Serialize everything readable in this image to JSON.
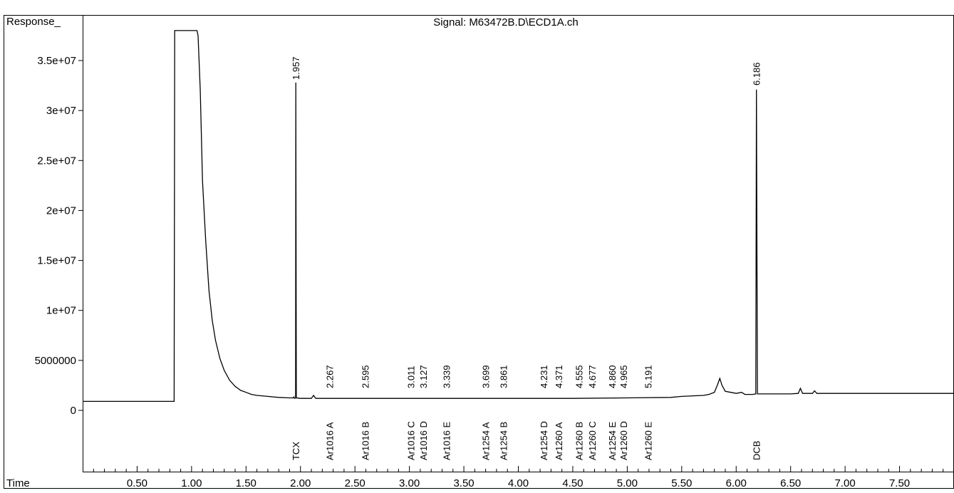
{
  "chart_data": {
    "type": "line",
    "title": "Signal: M63472B.D\\ECD1A.ch",
    "ylabel": "Response_",
    "xlabel": "Time",
    "xlim": [
      0.0,
      8.0
    ],
    "ylim": [
      -5000000,
      37000000
    ],
    "x_ticks": [
      {
        "value": 0.5,
        "label": "0.50"
      },
      {
        "value": 1.0,
        "label": "1.00"
      },
      {
        "value": 1.5,
        "label": "1.50"
      },
      {
        "value": 2.0,
        "label": "2.00"
      },
      {
        "value": 2.5,
        "label": "2.50"
      },
      {
        "value": 3.0,
        "label": "3.00"
      },
      {
        "value": 3.5,
        "label": "3.50"
      },
      {
        "value": 4.0,
        "label": "4.00"
      },
      {
        "value": 4.5,
        "label": "4.50"
      },
      {
        "value": 5.0,
        "label": "5.00"
      },
      {
        "value": 5.5,
        "label": "5.50"
      },
      {
        "value": 6.0,
        "label": "6.00"
      },
      {
        "value": 6.5,
        "label": "6.50"
      },
      {
        "value": 7.0,
        "label": "7.00"
      },
      {
        "value": 7.5,
        "label": "7.50"
      }
    ],
    "y_ticks": [
      {
        "value": 0,
        "label": "0"
      },
      {
        "value": 5000000,
        "label": "5000000"
      },
      {
        "value": 10000000,
        "label": "1e+07"
      },
      {
        "value": 15000000,
        "label": "1.5e+07"
      },
      {
        "value": 20000000,
        "label": "2e+07"
      },
      {
        "value": 25000000,
        "label": "2.5e+07"
      },
      {
        "value": 30000000,
        "label": "3e+07"
      },
      {
        "value": 35000000,
        "label": "3.5e+07"
      }
    ],
    "series": [
      {
        "color": "#000000",
        "points": [
          [
            0.0,
            900000
          ],
          [
            0.84,
            900000
          ],
          [
            0.84,
            900000
          ],
          [
            0.845,
            38000000
          ],
          [
            1.05,
            38000000
          ],
          [
            1.06,
            37500000
          ],
          [
            1.08,
            32000000
          ],
          [
            1.1,
            23000000
          ],
          [
            1.13,
            17000000
          ],
          [
            1.16,
            12000000
          ],
          [
            1.19,
            9000000
          ],
          [
            1.22,
            7000000
          ],
          [
            1.26,
            5200000
          ],
          [
            1.3,
            4000000
          ],
          [
            1.35,
            3000000
          ],
          [
            1.4,
            2400000
          ],
          [
            1.45,
            2000000
          ],
          [
            1.5,
            1800000
          ],
          [
            1.55,
            1600000
          ],
          [
            1.6,
            1500000
          ],
          [
            1.7,
            1400000
          ],
          [
            1.8,
            1300000
          ],
          [
            1.9,
            1250000
          ],
          [
            1.93,
            1250000
          ],
          [
            1.94,
            1350000
          ],
          [
            1.945,
            1200000
          ],
          [
            1.955,
            1250000
          ],
          [
            1.957,
            32800000
          ],
          [
            1.962,
            1250000
          ],
          [
            2.0,
            1200000
          ],
          [
            2.1,
            1200000
          ],
          [
            2.12,
            1500000
          ],
          [
            2.14,
            1200000
          ],
          [
            2.3,
            1200000
          ],
          [
            2.6,
            1200000
          ],
          [
            3.0,
            1200000
          ],
          [
            3.5,
            1200000
          ],
          [
            4.0,
            1200000
          ],
          [
            4.5,
            1200000
          ],
          [
            5.0,
            1250000
          ],
          [
            5.4,
            1300000
          ],
          [
            5.5,
            1400000
          ],
          [
            5.7,
            1500000
          ],
          [
            5.75,
            1600000
          ],
          [
            5.8,
            1800000
          ],
          [
            5.83,
            2600000
          ],
          [
            5.85,
            3200000
          ],
          [
            5.87,
            2500000
          ],
          [
            5.9,
            1900000
          ],
          [
            5.95,
            1800000
          ],
          [
            6.0,
            1700000
          ],
          [
            6.05,
            1800000
          ],
          [
            6.08,
            1600000
          ],
          [
            6.15,
            1600000
          ],
          [
            6.18,
            1650000
          ],
          [
            6.186,
            32100000
          ],
          [
            6.195,
            1650000
          ],
          [
            6.3,
            1650000
          ],
          [
            6.5,
            1650000
          ],
          [
            6.57,
            1700000
          ],
          [
            6.59,
            2200000
          ],
          [
            6.61,
            1700000
          ],
          [
            6.7,
            1700000
          ],
          [
            6.72,
            1950000
          ],
          [
            6.74,
            1700000
          ],
          [
            7.0,
            1700000
          ],
          [
            7.5,
            1700000
          ],
          [
            8.0,
            1700000
          ]
        ]
      }
    ],
    "peak_labels": [
      {
        "x": 1.957,
        "label": "1.957"
      },
      {
        "x": 2.267,
        "label": "2.267"
      },
      {
        "x": 2.595,
        "label": "2.595"
      },
      {
        "x": 3.011,
        "label": "3.011"
      },
      {
        "x": 3.127,
        "label": "3.127"
      },
      {
        "x": 3.339,
        "label": "3.339"
      },
      {
        "x": 3.699,
        "label": "3.699"
      },
      {
        "x": 3.861,
        "label": "3.861"
      },
      {
        "x": 4.231,
        "label": "4.231"
      },
      {
        "x": 4.371,
        "label": "4.371"
      },
      {
        "x": 4.555,
        "label": "4.555"
      },
      {
        "x": 4.677,
        "label": "4.677"
      },
      {
        "x": 4.86,
        "label": "4.860"
      },
      {
        "x": 4.965,
        "label": "4.965"
      },
      {
        "x": 5.191,
        "label": "5.191"
      },
      {
        "x": 6.186,
        "label": "6.186"
      }
    ],
    "compound_labels": [
      {
        "x": 1.957,
        "label": "TCX"
      },
      {
        "x": 2.267,
        "label": "Ar1016 A"
      },
      {
        "x": 2.595,
        "label": "Ar1016 B"
      },
      {
        "x": 3.011,
        "label": "Ar1016 C"
      },
      {
        "x": 3.127,
        "label": "Ar1016 D"
      },
      {
        "x": 3.339,
        "label": "Ar1016 E"
      },
      {
        "x": 3.699,
        "label": "Ar1254 A"
      },
      {
        "x": 3.861,
        "label": "Ar1254 B"
      },
      {
        "x": 4.231,
        "label": "Ar1254 D"
      },
      {
        "x": 4.371,
        "label": "Ar1260 A"
      },
      {
        "x": 4.555,
        "label": "Ar1260 B"
      },
      {
        "x": 4.677,
        "label": "Ar1260 C"
      },
      {
        "x": 4.86,
        "label": "Ar1254 E"
      },
      {
        "x": 4.965,
        "label": "Ar1260 D"
      },
      {
        "x": 5.191,
        "label": "Ar1260 E"
      },
      {
        "x": 6.186,
        "label": "DCB"
      }
    ],
    "grid": false
  }
}
